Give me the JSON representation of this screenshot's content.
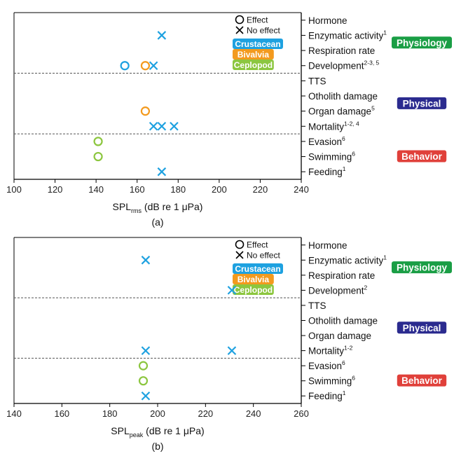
{
  "chart_data": [
    {
      "type": "scatter",
      "panel_label": "(a)",
      "xlabel_main": "SPL",
      "xlabel_sub": "rms",
      "xlabel_rest": " (dB re 1 μPa)",
      "xlim": [
        100,
        240
      ],
      "xticks": [
        100,
        120,
        140,
        160,
        180,
        200,
        220,
        240
      ],
      "categories": [
        {
          "name": "Hormone",
          "sup": ""
        },
        {
          "name": "Enzymatic activity",
          "sup": "1"
        },
        {
          "name": "Respiration rate",
          "sup": ""
        },
        {
          "name": "Development",
          "sup": "2-3, 5"
        },
        {
          "name": "TTS",
          "sup": ""
        },
        {
          "name": "Otholith damage",
          "sup": ""
        },
        {
          "name": "Organ damage",
          "sup": "5"
        },
        {
          "name": "Mortality",
          "sup": "1-2, 4"
        },
        {
          "name": "Evasion",
          "sup": "6"
        },
        {
          "name": "Swimming",
          "sup": "6"
        },
        {
          "name": "Feeding",
          "sup": "1"
        }
      ],
      "groups": [
        {
          "label": "Physiology",
          "color": "#1a9e45",
          "range": [
            0,
            3
          ]
        },
        {
          "label": "Physical",
          "color": "#2b2b8f",
          "range": [
            4,
            7
          ]
        },
        {
          "label": "Behavior",
          "color": "#e0403a",
          "range": [
            8,
            10
          ]
        }
      ],
      "dividers_after": [
        3,
        7
      ],
      "points": [
        {
          "category": "Enzymatic activity",
          "x": 172,
          "taxon": "Crustacean",
          "marker": "no-effect"
        },
        {
          "category": "Development",
          "x": 154,
          "taxon": "Crustacean",
          "marker": "effect"
        },
        {
          "category": "Development",
          "x": 164,
          "taxon": "Bivalvia",
          "marker": "effect"
        },
        {
          "category": "Development",
          "x": 168,
          "taxon": "Crustacean",
          "marker": "no-effect"
        },
        {
          "category": "Organ damage",
          "x": 164,
          "taxon": "Bivalvia",
          "marker": "effect"
        },
        {
          "category": "Mortality",
          "x": 168,
          "taxon": "Crustacean",
          "marker": "no-effect"
        },
        {
          "category": "Mortality",
          "x": 172,
          "taxon": "Crustacean",
          "marker": "no-effect"
        },
        {
          "category": "Mortality",
          "x": 178,
          "taxon": "Crustacean",
          "marker": "no-effect"
        },
        {
          "category": "Evasion",
          "x": 141,
          "taxon": "Ceplopod",
          "marker": "effect"
        },
        {
          "category": "Swimming",
          "x": 141,
          "taxon": "Ceplopod",
          "marker": "effect"
        },
        {
          "category": "Feeding",
          "x": 172,
          "taxon": "Crustacean",
          "marker": "no-effect"
        }
      ],
      "legend": {
        "placement": "top-right",
        "markers": [
          {
            "marker": "effect",
            "label": "Effect"
          },
          {
            "marker": "no-effect",
            "label": "No effect"
          }
        ],
        "taxa": [
          "Crustacean",
          "Bivalvia",
          "Ceplopod"
        ]
      }
    },
    {
      "type": "scatter",
      "panel_label": "(b)",
      "xlabel_main": "SPL",
      "xlabel_sub": "peak",
      "xlabel_rest": " (dB re 1 μPa)",
      "xlim": [
        140,
        260
      ],
      "xticks": [
        140,
        160,
        180,
        200,
        220,
        240,
        260
      ],
      "categories": [
        {
          "name": "Hormone",
          "sup": ""
        },
        {
          "name": "Enzymatic activity",
          "sup": "1"
        },
        {
          "name": "Respiration rate",
          "sup": ""
        },
        {
          "name": "Development",
          "sup": "2"
        },
        {
          "name": "TTS",
          "sup": ""
        },
        {
          "name": "Otholith damage",
          "sup": ""
        },
        {
          "name": "Organ damage",
          "sup": ""
        },
        {
          "name": "Mortality",
          "sup": "1-2"
        },
        {
          "name": "Evasion",
          "sup": "6"
        },
        {
          "name": "Swimming",
          "sup": "6"
        },
        {
          "name": "Feeding",
          "sup": "1"
        }
      ],
      "groups": [
        {
          "label": "Physiology",
          "color": "#1a9e45",
          "range": [
            0,
            3
          ]
        },
        {
          "label": "Physical",
          "color": "#2b2b8f",
          "range": [
            4,
            7
          ]
        },
        {
          "label": "Behavior",
          "color": "#e0403a",
          "range": [
            8,
            10
          ]
        }
      ],
      "dividers_after": [
        3,
        7
      ],
      "points": [
        {
          "category": "Enzymatic activity",
          "x": 195,
          "taxon": "Crustacean",
          "marker": "no-effect"
        },
        {
          "category": "Development",
          "x": 231,
          "taxon": "Crustacean",
          "marker": "no-effect"
        },
        {
          "category": "Mortality",
          "x": 195,
          "taxon": "Crustacean",
          "marker": "no-effect"
        },
        {
          "category": "Mortality",
          "x": 231,
          "taxon": "Crustacean",
          "marker": "no-effect"
        },
        {
          "category": "Evasion",
          "x": 194,
          "taxon": "Ceplopod",
          "marker": "effect"
        },
        {
          "category": "Swimming",
          "x": 194,
          "taxon": "Ceplopod",
          "marker": "effect"
        },
        {
          "category": "Feeding",
          "x": 195,
          "taxon": "Crustacean",
          "marker": "no-effect"
        }
      ],
      "legend": {
        "placement": "top-right",
        "markers": [
          {
            "marker": "effect",
            "label": "Effect"
          },
          {
            "marker": "no-effect",
            "label": "No effect"
          }
        ],
        "taxa": [
          "Crustacean",
          "Bivalvia",
          "Ceplopod"
        ]
      }
    }
  ],
  "taxon_colors": {
    "Crustacean": "#1ea1e0",
    "Bivalvia": "#f39a1e",
    "Ceplopod": "#8cc63f"
  }
}
